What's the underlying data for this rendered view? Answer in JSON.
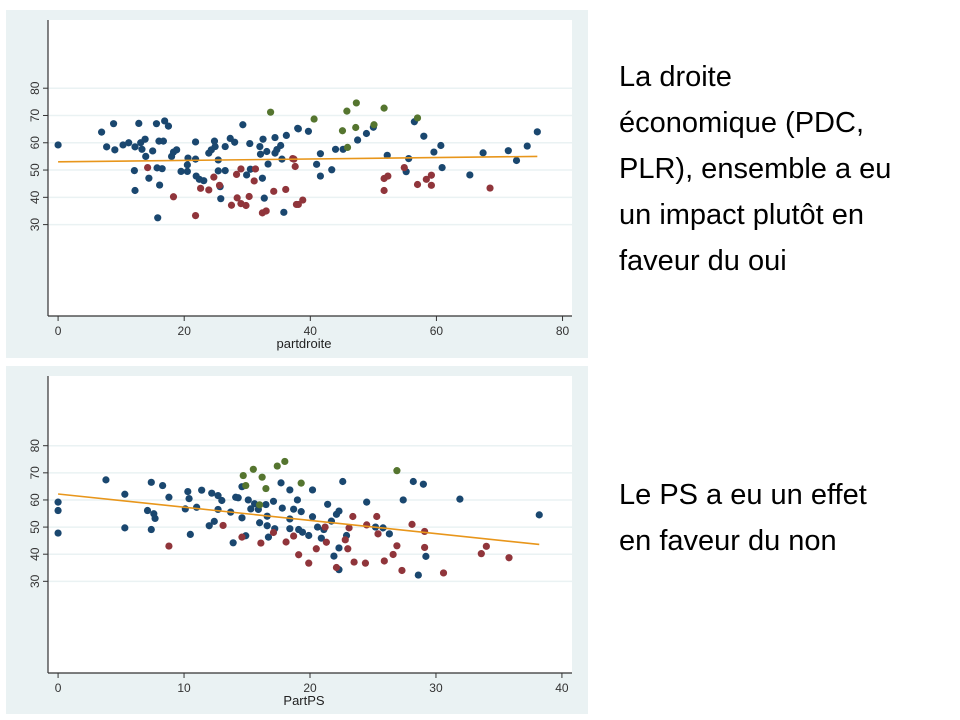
{
  "colors": {
    "blue": "#1a476f",
    "red": "#90353b",
    "green": "#55752f",
    "fit": "#e8961b",
    "grid": "#eaf2f3"
  },
  "captions": {
    "top": [
      "La droite",
      "économique (PDC,",
      "PLR), ensemble  a eu",
      "un impact plutôt en",
      "faveur du oui"
    ],
    "bottom": [
      "Le PS a eu un effet",
      "en faveur du non"
    ]
  },
  "chart_data": [
    {
      "type": "scatter",
      "title": "",
      "xlabel": "partdroite",
      "ylabel": "",
      "xlim": [
        -1.6,
        81.5
      ],
      "ylim": [
        -3.5,
        105
      ],
      "xticks": [
        0,
        20,
        40,
        60,
        80
      ],
      "yticks": [
        30,
        40,
        50,
        60,
        70,
        80
      ],
      "grid": true,
      "fit_line": [
        [
          0,
          53
        ],
        [
          76,
          55
        ]
      ],
      "groups": {
        "b": "blue",
        "r": "red",
        "g": "green"
      },
      "points": [
        [
          0,
          59.2,
          "b"
        ],
        [
          6.9,
          63.9,
          "b"
        ],
        [
          7.7,
          58.5,
          "b"
        ],
        [
          8.8,
          67,
          "b"
        ],
        [
          9,
          57.4,
          "b"
        ],
        [
          10.3,
          59.2,
          "b"
        ],
        [
          11.2,
          60,
          "b"
        ],
        [
          12.1,
          49.8,
          "b"
        ],
        [
          12.2,
          42.5,
          "b"
        ],
        [
          12.2,
          58.5,
          "b"
        ],
        [
          12.8,
          67.1,
          "b"
        ],
        [
          13.1,
          60,
          "b"
        ],
        [
          13.3,
          57.6,
          "b"
        ],
        [
          13.8,
          61.3,
          "b"
        ],
        [
          13.9,
          55,
          "b"
        ],
        [
          14.4,
          47,
          "b"
        ],
        [
          15,
          57,
          "b"
        ],
        [
          15.6,
          67,
          "b"
        ],
        [
          15.7,
          50.8,
          "b"
        ],
        [
          15.8,
          32.5,
          "b"
        ],
        [
          16,
          60.6,
          "b"
        ],
        [
          16.1,
          44.5,
          "b"
        ],
        [
          16.5,
          50.5,
          "b"
        ],
        [
          16.7,
          60.6,
          "b"
        ],
        [
          16.9,
          68,
          "b"
        ],
        [
          17.5,
          66.1,
          "b"
        ],
        [
          18,
          55,
          "b"
        ],
        [
          18.3,
          56.6,
          "b"
        ],
        [
          18.8,
          57.4,
          "b"
        ],
        [
          19.5,
          49.5,
          "b"
        ],
        [
          20.5,
          49.5,
          "b"
        ],
        [
          20.5,
          51.9,
          "b"
        ],
        [
          20.6,
          54.4,
          "b"
        ],
        [
          21.8,
          54,
          "b"
        ],
        [
          21.8,
          60.3,
          "b"
        ],
        [
          21.9,
          47.8,
          "b"
        ],
        [
          22.4,
          46.6,
          "b"
        ],
        [
          23.1,
          46.1,
          "b"
        ],
        [
          23.9,
          56.2,
          "b"
        ],
        [
          24.3,
          57.4,
          "b"
        ],
        [
          24.8,
          60.6,
          "b"
        ],
        [
          24.9,
          58.6,
          "b"
        ],
        [
          25.4,
          49.7,
          "b"
        ],
        [
          25.4,
          53.7,
          "b"
        ],
        [
          25.7,
          43.9,
          "b"
        ],
        [
          25.8,
          39.5,
          "b"
        ],
        [
          26.5,
          49.8,
          "b"
        ],
        [
          26.5,
          58.6,
          "b"
        ],
        [
          27.3,
          61.6,
          "b"
        ],
        [
          28,
          60.2,
          "b"
        ],
        [
          29.3,
          66.6,
          "b"
        ],
        [
          29.9,
          48.2,
          "b"
        ],
        [
          30.4,
          59.7,
          "b"
        ],
        [
          30.5,
          50.3,
          "b"
        ],
        [
          32,
          58.6,
          "b"
        ],
        [
          32.1,
          55.8,
          "b"
        ],
        [
          32.4,
          47,
          "b"
        ],
        [
          32.5,
          61.3,
          "b"
        ],
        [
          32.7,
          39.7,
          "b"
        ],
        [
          33.1,
          56.8,
          "b"
        ],
        [
          33.3,
          52.2,
          "b"
        ],
        [
          34.4,
          61.9,
          "b"
        ],
        [
          34.4,
          56.2,
          "b"
        ],
        [
          34.7,
          57.5,
          "b"
        ],
        [
          35.3,
          59,
          "b"
        ],
        [
          35.5,
          54,
          "b"
        ],
        [
          35.8,
          34.5,
          "b"
        ],
        [
          36.2,
          62.7,
          "b"
        ],
        [
          38.1,
          65.1,
          "b"
        ],
        [
          38,
          65.3,
          "b"
        ],
        [
          39.7,
          64.2,
          "b"
        ],
        [
          41,
          52.1,
          "b"
        ],
        [
          41.6,
          47.8,
          "b"
        ],
        [
          41.6,
          56,
          "b"
        ],
        [
          43.4,
          50.1,
          "b"
        ],
        [
          44,
          57.6,
          "b"
        ],
        [
          45.2,
          57.6,
          "b"
        ],
        [
          47.5,
          61,
          "b"
        ],
        [
          48.9,
          63.4,
          "b"
        ],
        [
          50,
          65.7,
          "b"
        ],
        [
          52.2,
          55.4,
          "b"
        ],
        [
          55.2,
          49.4,
          "b"
        ],
        [
          55.6,
          54.2,
          "b"
        ],
        [
          56.5,
          67.7,
          "b"
        ],
        [
          58,
          62.4,
          "b"
        ],
        [
          59.6,
          56.6,
          "b"
        ],
        [
          60.7,
          59,
          "b"
        ],
        [
          60.9,
          50.9,
          "b"
        ],
        [
          65.3,
          48.2,
          "b"
        ],
        [
          67.4,
          56.3,
          "b"
        ],
        [
          71.4,
          57.1,
          "b"
        ],
        [
          72.7,
          53.5,
          "b"
        ],
        [
          74.4,
          58.8,
          "b"
        ],
        [
          76,
          64,
          "b"
        ],
        [
          14.2,
          50.9,
          "r"
        ],
        [
          18.3,
          40.2,
          "r"
        ],
        [
          21.8,
          33.3,
          "r"
        ],
        [
          22.6,
          43.3,
          "r"
        ],
        [
          23.9,
          42.7,
          "r"
        ],
        [
          24.7,
          47.4,
          "r"
        ],
        [
          25.6,
          44.4,
          "r"
        ],
        [
          27.5,
          37.1,
          "r"
        ],
        [
          28.3,
          48.4,
          "r"
        ],
        [
          28.4,
          39.8,
          "r"
        ],
        [
          29,
          50.4,
          "r"
        ],
        [
          29,
          37.7,
          "r"
        ],
        [
          29.8,
          37,
          "r"
        ],
        [
          30.3,
          40.3,
          "r"
        ],
        [
          31.1,
          46,
          "r"
        ],
        [
          31.3,
          50.4,
          "r"
        ],
        [
          32.4,
          34.3,
          "r"
        ],
        [
          33,
          35,
          "r"
        ],
        [
          34.2,
          42.2,
          "r"
        ],
        [
          36.1,
          42.9,
          "r"
        ],
        [
          37.4,
          54,
          "r"
        ],
        [
          37.6,
          51.3,
          "r"
        ],
        [
          38.1,
          37.4,
          "r"
        ],
        [
          37.2,
          54.2,
          "r"
        ],
        [
          37.8,
          37.4,
          "r"
        ],
        [
          38.8,
          39,
          "r"
        ],
        [
          51.7,
          42.5,
          "r"
        ],
        [
          51.7,
          46.9,
          "r"
        ],
        [
          52.3,
          47.8,
          "r"
        ],
        [
          54.9,
          50.9,
          "r"
        ],
        [
          57,
          44.7,
          "r"
        ],
        [
          58.4,
          46.6,
          "r"
        ],
        [
          59.2,
          48.1,
          "r"
        ],
        [
          59.2,
          44.4,
          "r"
        ],
        [
          68.5,
          43.4,
          "r"
        ],
        [
          33.7,
          71.2,
          "g"
        ],
        [
          40.6,
          68.7,
          "g"
        ],
        [
          45.1,
          64.4,
          "g"
        ],
        [
          45.8,
          71.6,
          "g"
        ],
        [
          47.3,
          74.6,
          "g"
        ],
        [
          47.2,
          65.6,
          "g"
        ],
        [
          45.9,
          58.3,
          "g"
        ],
        [
          50.1,
          66.6,
          "g"
        ],
        [
          51.7,
          72.7,
          "g"
        ],
        [
          57,
          69.1,
          "g"
        ]
      ]
    },
    {
      "type": "scatter",
      "title": "",
      "xlabel": "PartPS",
      "ylabel": "",
      "xlim": [
        -0.8,
        40.8
      ],
      "ylim": [
        -3.8,
        105.7
      ],
      "xticks": [
        0,
        10,
        20,
        30,
        40
      ],
      "yticks": [
        30,
        40,
        50,
        60,
        70,
        80
      ],
      "grid": true,
      "fit_line": [
        [
          0,
          62.2
        ],
        [
          38.2,
          43.6
        ]
      ],
      "groups": {
        "b": "blue",
        "r": "red",
        "g": "green"
      },
      "points": [
        [
          0,
          59.2,
          "b"
        ],
        [
          0,
          56.1,
          "b"
        ],
        [
          0,
          47.8,
          "b"
        ],
        [
          3.8,
          67.4,
          "b"
        ],
        [
          5.3,
          62.1,
          "b"
        ],
        [
          5.3,
          49.7,
          "b"
        ],
        [
          7.1,
          56.1,
          "b"
        ],
        [
          7.4,
          66.5,
          "b"
        ],
        [
          7.4,
          49.1,
          "b"
        ],
        [
          7.6,
          54.9,
          "b"
        ],
        [
          7.7,
          53.2,
          "b"
        ],
        [
          8.3,
          65.3,
          "b"
        ],
        [
          8.8,
          61,
          "b"
        ],
        [
          10.1,
          56.7,
          "b"
        ],
        [
          10.3,
          63.1,
          "b"
        ],
        [
          10.4,
          60.5,
          "b"
        ],
        [
          10.5,
          47.3,
          "b"
        ],
        [
          11,
          57.3,
          "b"
        ],
        [
          11.4,
          63.6,
          "b"
        ],
        [
          12,
          50.5,
          "b"
        ],
        [
          12.2,
          62.5,
          "b"
        ],
        [
          12.4,
          52.1,
          "b"
        ],
        [
          12.7,
          61.6,
          "b"
        ],
        [
          12.7,
          56.5,
          "b"
        ],
        [
          13,
          59.8,
          "b"
        ],
        [
          13.7,
          55.5,
          "b"
        ],
        [
          13.9,
          44.2,
          "b"
        ],
        [
          14.1,
          61,
          "b"
        ],
        [
          14.3,
          60.8,
          "b"
        ],
        [
          14.6,
          53.4,
          "b"
        ],
        [
          14.6,
          64.9,
          "b"
        ],
        [
          14.9,
          46.8,
          "b"
        ],
        [
          15.1,
          60,
          "b"
        ],
        [
          15.3,
          56.7,
          "b"
        ],
        [
          15.6,
          58.6,
          "b"
        ],
        [
          15.9,
          56.5,
          "b"
        ],
        [
          16,
          51.6,
          "b"
        ],
        [
          16.5,
          58.3,
          "b"
        ],
        [
          16.6,
          54,
          "b"
        ],
        [
          16.6,
          50.5,
          "b"
        ],
        [
          16.7,
          46.3,
          "b"
        ],
        [
          17.1,
          59.5,
          "b"
        ],
        [
          17.2,
          49.4,
          "b"
        ],
        [
          17.7,
          66.3,
          "b"
        ],
        [
          17.8,
          57,
          "b"
        ],
        [
          18.4,
          63.7,
          "b"
        ],
        [
          18.4,
          53,
          "b"
        ],
        [
          18.4,
          49.4,
          "b"
        ],
        [
          18.7,
          56.6,
          "b"
        ],
        [
          19,
          60,
          "b"
        ],
        [
          19.1,
          49.1,
          "b"
        ],
        [
          19.3,
          55.7,
          "b"
        ],
        [
          19.4,
          48.1,
          "b"
        ],
        [
          19.9,
          46.9,
          "b"
        ],
        [
          20.2,
          63.7,
          "b"
        ],
        [
          20.2,
          53.8,
          "b"
        ],
        [
          20.6,
          50,
          "b"
        ],
        [
          20.9,
          45.9,
          "b"
        ],
        [
          21.1,
          49.1,
          "b"
        ],
        [
          21.4,
          58.4,
          "b"
        ],
        [
          21.7,
          52.2,
          "b"
        ],
        [
          22.1,
          54.7,
          "b"
        ],
        [
          22.3,
          55.9,
          "b"
        ],
        [
          22.6,
          66.8,
          "b"
        ],
        [
          22.3,
          42.3,
          "b"
        ],
        [
          21.9,
          39.3,
          "b"
        ],
        [
          22.3,
          34.3,
          "b"
        ],
        [
          22.9,
          46.9,
          "b"
        ],
        [
          24.5,
          59.2,
          "b"
        ],
        [
          25.2,
          50,
          "b"
        ],
        [
          25.8,
          49.7,
          "b"
        ],
        [
          26.3,
          47.5,
          "b"
        ],
        [
          27.4,
          60,
          "b"
        ],
        [
          28.2,
          66.8,
          "b"
        ],
        [
          28.6,
          32.3,
          "b"
        ],
        [
          29,
          65.8,
          "b"
        ],
        [
          29.2,
          39.2,
          "b"
        ],
        [
          31.9,
          60.3,
          "b"
        ],
        [
          38.2,
          54.5,
          "b"
        ],
        [
          8.8,
          43,
          "r"
        ],
        [
          13.1,
          50.6,
          "r"
        ],
        [
          14.6,
          46.3,
          "r"
        ],
        [
          16.1,
          44.1,
          "r"
        ],
        [
          17.1,
          48,
          "r"
        ],
        [
          18.1,
          44.5,
          "r"
        ],
        [
          18.7,
          46.7,
          "r"
        ],
        [
          19.1,
          39.8,
          "r"
        ],
        [
          19.9,
          36.7,
          "r"
        ],
        [
          20.5,
          42,
          "r"
        ],
        [
          21.2,
          50,
          "r"
        ],
        [
          21.3,
          44.4,
          "r"
        ],
        [
          22.1,
          35.1,
          "r"
        ],
        [
          22.8,
          45.3,
          "r"
        ],
        [
          23,
          42,
          "r"
        ],
        [
          23.1,
          49.7,
          "r"
        ],
        [
          23.4,
          53.9,
          "r"
        ],
        [
          23.5,
          37.1,
          "r"
        ],
        [
          24.4,
          36.7,
          "r"
        ],
        [
          24.5,
          50.8,
          "r"
        ],
        [
          25.3,
          53.9,
          "r"
        ],
        [
          25.4,
          47.5,
          "r"
        ],
        [
          25.9,
          37.5,
          "r"
        ],
        [
          26.6,
          39.9,
          "r"
        ],
        [
          26.9,
          43.1,
          "r"
        ],
        [
          27.3,
          34,
          "r"
        ],
        [
          28.1,
          51,
          "r"
        ],
        [
          29.1,
          48.4,
          "r"
        ],
        [
          29.1,
          42.5,
          "r"
        ],
        [
          30.6,
          33.1,
          "r"
        ],
        [
          33.6,
          40.2,
          "r"
        ],
        [
          34,
          42.9,
          "r"
        ],
        [
          35.8,
          38.7,
          "r"
        ],
        [
          14.7,
          69,
          "g"
        ],
        [
          14.9,
          65.3,
          "g"
        ],
        [
          15.5,
          71.3,
          "g"
        ],
        [
          16,
          58.2,
          "g"
        ],
        [
          16.2,
          68.4,
          "g"
        ],
        [
          16.5,
          64.2,
          "g"
        ],
        [
          17.4,
          72.5,
          "g"
        ],
        [
          18,
          74.2,
          "g"
        ],
        [
          19.3,
          66.2,
          "g"
        ],
        [
          26.9,
          70.8,
          "g"
        ]
      ]
    }
  ]
}
